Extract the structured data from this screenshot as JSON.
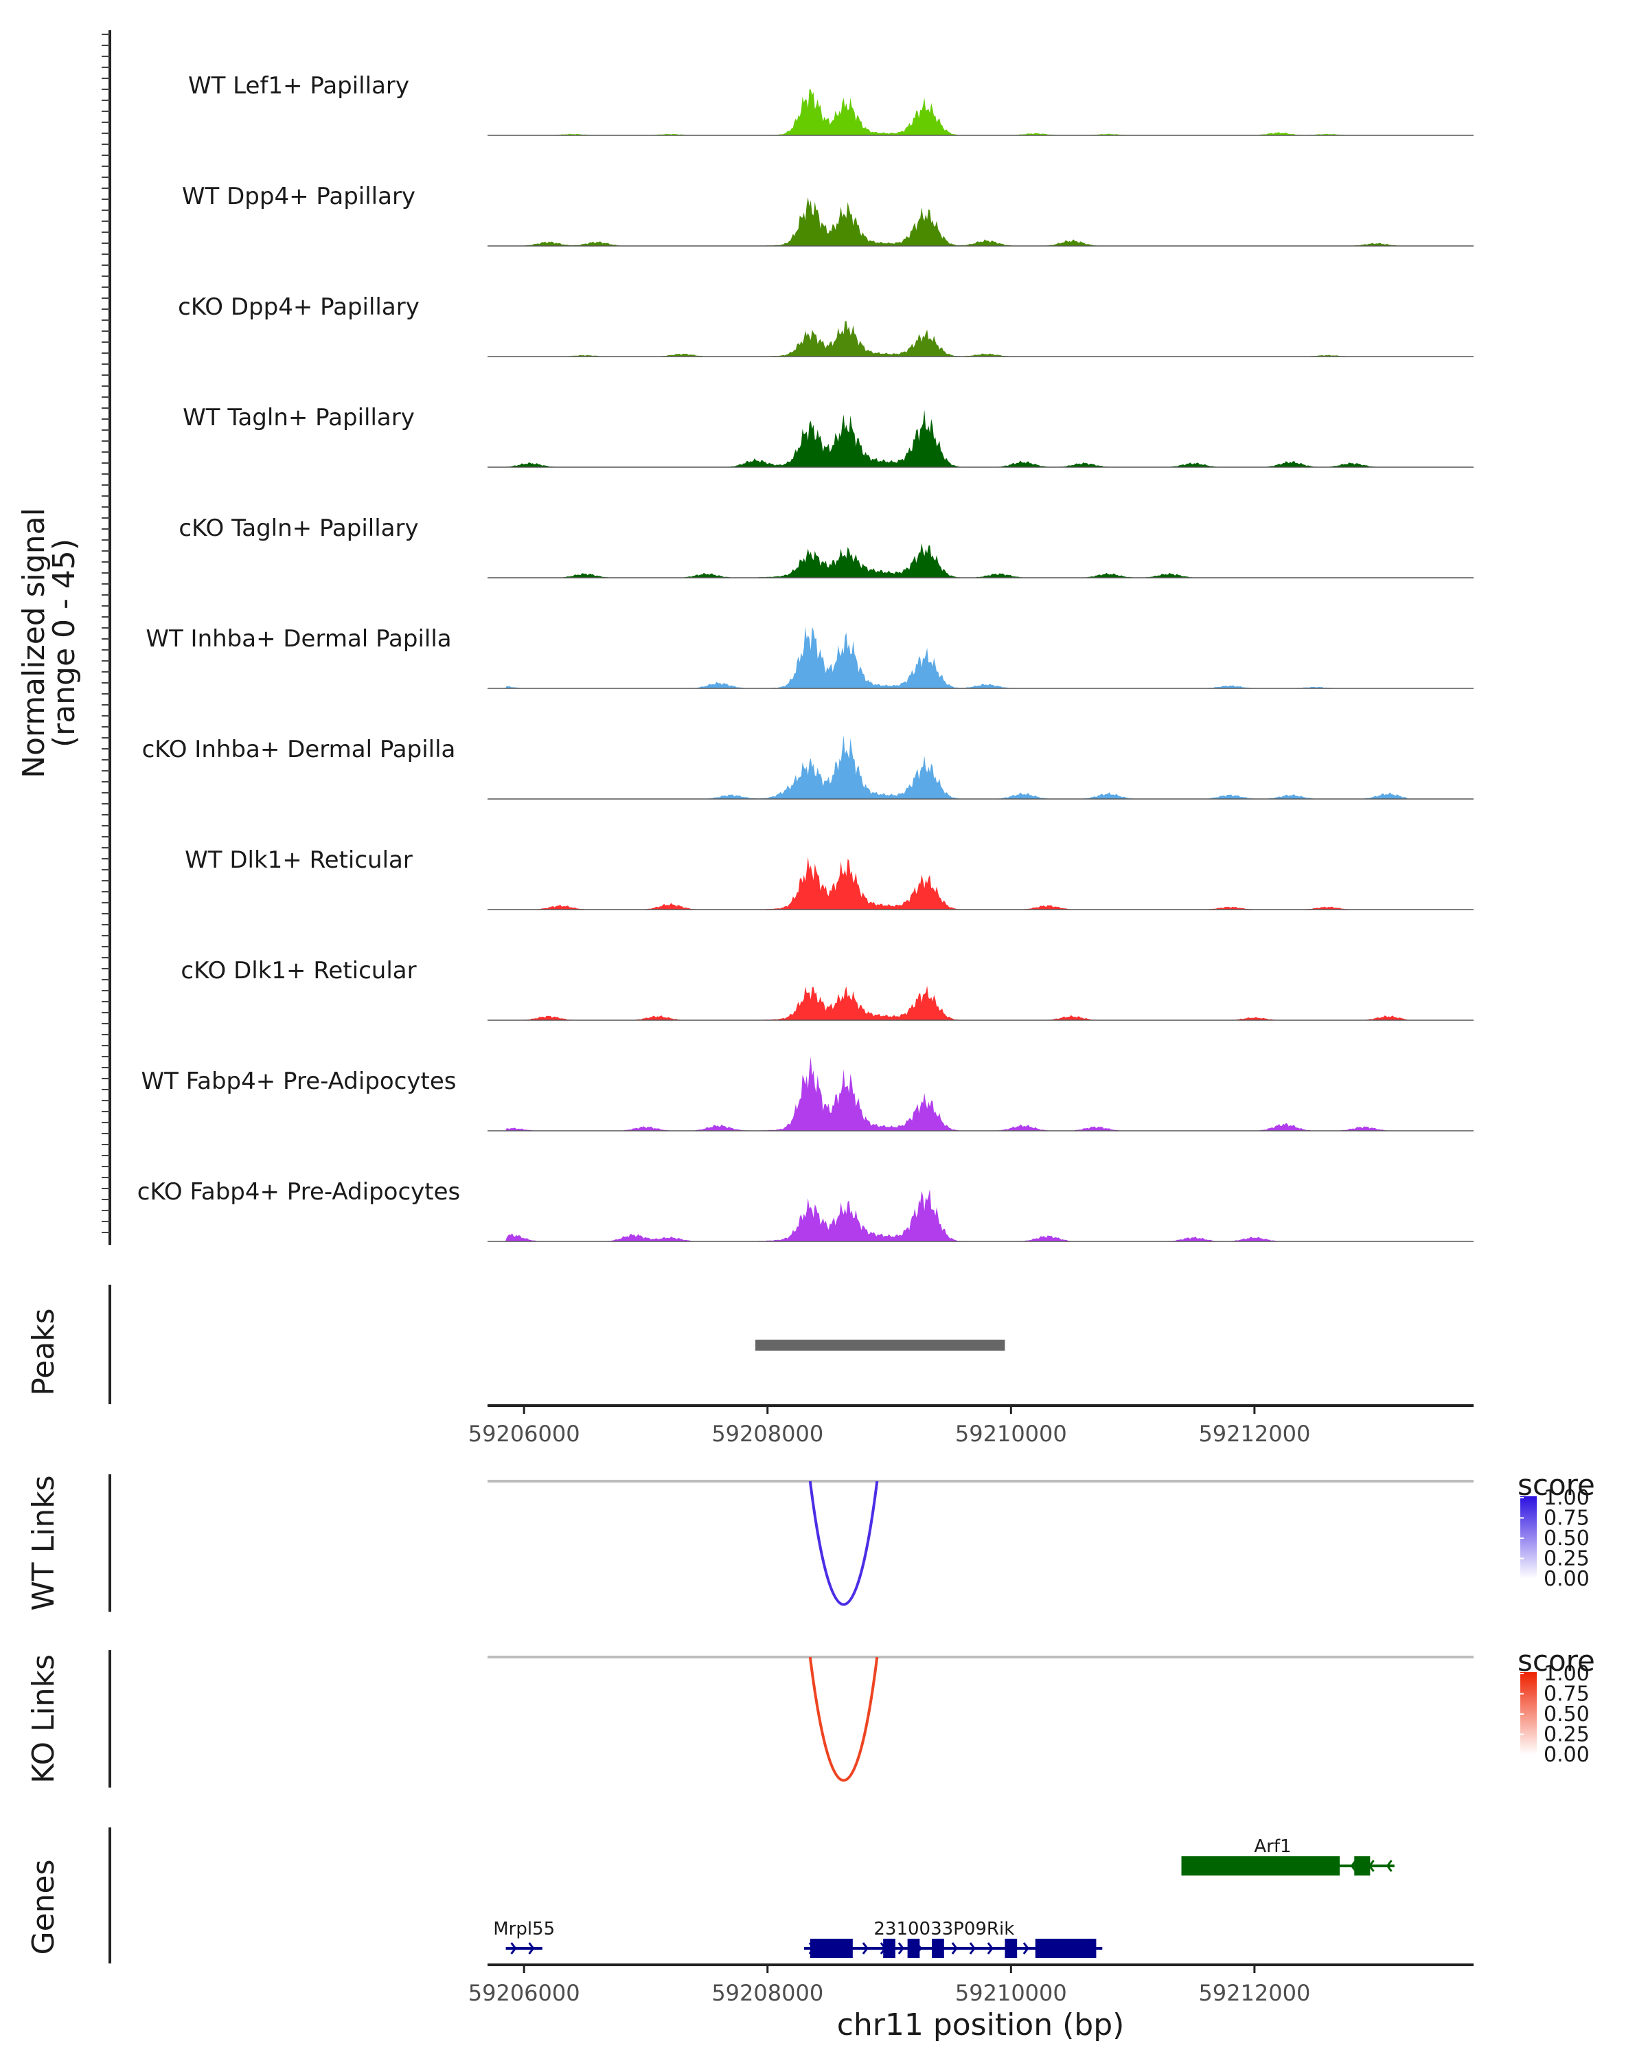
{
  "chart_data": {
    "type": "area",
    "title": "",
    "region": {
      "chromosome": "chr11",
      "start": 59205700,
      "end": 59213800
    },
    "coverage": {
      "ylabel": "Normalized signal",
      "ylabel_range": "(range 0 - 45)",
      "ylim": [
        0,
        45
      ],
      "peak_centers": [
        59208350,
        59208650,
        59209300
      ],
      "tracks": [
        {
          "name": "WT Lef1+ Papillary",
          "color": "#66cc00",
          "heights": [
            30,
            22,
            22
          ],
          "noise": 1.5,
          "extra": [
            [
              59206400,
              1
            ],
            [
              59207200,
              1
            ],
            [
              59210200,
              1.5
            ],
            [
              59210800,
              1
            ],
            [
              59212200,
              2
            ],
            [
              59212600,
              1
            ]
          ]
        },
        {
          "name": "WT Dpp4+ Papillary",
          "color": "#4a8a00",
          "heights": [
            30,
            24,
            24
          ],
          "noise": 2,
          "extra": [
            [
              59206200,
              3
            ],
            [
              59206600,
              3
            ],
            [
              59209800,
              4
            ],
            [
              59210500,
              4
            ],
            [
              59213000,
              2
            ]
          ]
        },
        {
          "name": "cKO Dpp4+ Papillary",
          "color": "#4f8a0b",
          "heights": [
            16,
            20,
            16
          ],
          "noise": 2,
          "extra": [
            [
              59206500,
              1
            ],
            [
              59207300,
              2
            ],
            [
              59209800,
              2
            ],
            [
              59212600,
              1
            ]
          ]
        },
        {
          "name": "WT Tagln+ Papillary",
          "color": "#006100",
          "heights": [
            27,
            27,
            33
          ],
          "noise": 4,
          "extra": [
            [
              59206050,
              3
            ],
            [
              59207900,
              5
            ],
            [
              59210100,
              4
            ],
            [
              59210600,
              3
            ],
            [
              59211500,
              3
            ],
            [
              59212300,
              4
            ],
            [
              59212800,
              3
            ]
          ]
        },
        {
          "name": "cKO Tagln+ Papillary",
          "color": "#006100",
          "heights": [
            15,
            13,
            21
          ],
          "noise": 4,
          "extra": [
            [
              59206500,
              3
            ],
            [
              59207500,
              3
            ],
            [
              59209900,
              3
            ],
            [
              59210800,
              3
            ],
            [
              59211300,
              3
            ]
          ]
        },
        {
          "name": "WT Inhba+ Dermal Papilla",
          "color": "#5ba9e6",
          "heights": [
            40,
            32,
            24
          ],
          "noise": 2,
          "extra": [
            [
              59205800,
              2
            ],
            [
              59207600,
              4
            ],
            [
              59209800,
              3
            ],
            [
              59211800,
              2
            ],
            [
              59212500,
              1
            ]
          ]
        },
        {
          "name": "cKO Inhba+ Dermal Papilla",
          "color": "#5ba9e6",
          "heights": [
            22,
            35,
            25
          ],
          "noise": 3,
          "extra": [
            [
              59207700,
              3
            ],
            [
              59208200,
              6
            ],
            [
              59210100,
              4
            ],
            [
              59210800,
              4
            ],
            [
              59211800,
              3
            ],
            [
              59212300,
              3
            ],
            [
              59213100,
              4
            ]
          ]
        },
        {
          "name": "WT Dlk1+ Reticular",
          "color": "#ff3030",
          "heights": [
            30,
            28,
            22
          ],
          "noise": 3,
          "extra": [
            [
              59206300,
              3
            ],
            [
              59207200,
              4
            ],
            [
              59210300,
              3
            ],
            [
              59211800,
              2
            ],
            [
              59212600,
              2
            ]
          ]
        },
        {
          "name": "cKO Dlk1+ Reticular",
          "color": "#ff3030",
          "heights": [
            20,
            16,
            20
          ],
          "noise": 3,
          "extra": [
            [
              59206200,
              3
            ],
            [
              59207100,
              3
            ],
            [
              59210500,
              3
            ],
            [
              59212000,
              2
            ],
            [
              59213100,
              3
            ]
          ]
        },
        {
          "name": "WT Fabp4+ Pre-Adipocytes",
          "color": "#b13ded",
          "heights": [
            43,
            33,
            22
          ],
          "noise": 3,
          "extra": [
            [
              59205900,
              2
            ],
            [
              59207000,
              3
            ],
            [
              59207600,
              4
            ],
            [
              59210100,
              4
            ],
            [
              59210700,
              3
            ],
            [
              59212250,
              5
            ],
            [
              59212900,
              3
            ]
          ]
        },
        {
          "name": "cKO Fabp4+ Pre-Adipocytes",
          "color": "#b13ded",
          "heights": [
            23,
            20,
            33
          ],
          "noise": 4,
          "extra": [
            [
              59205900,
              5
            ],
            [
              59206900,
              5
            ],
            [
              59207200,
              3
            ],
            [
              59210300,
              4
            ],
            [
              59211500,
              3
            ],
            [
              59212000,
              3
            ]
          ]
        }
      ]
    },
    "peaks": {
      "label": "Peaks",
      "color": "#666666",
      "intervals": [
        [
          59207900,
          59209950
        ]
      ]
    },
    "x_axis": {
      "ticks": [
        59206000,
        59208000,
        59210000,
        59212000
      ],
      "tick_labels": [
        "59206000",
        "59208000",
        "59210000",
        "59212000"
      ],
      "xlabel": "chr11 position (bp)"
    },
    "links": [
      {
        "label": "WT Links",
        "from": 59208350,
        "to": 59208900,
        "score": 0.85,
        "color": "#4b2ee6",
        "legend": {
          "title": "score",
          "ticks": [
            "1.00",
            "0.75",
            "0.50",
            "0.25",
            "0.00"
          ],
          "low": "#ffffff",
          "high": "#2b10e0"
        }
      },
      {
        "label": "KO Links",
        "from": 59208350,
        "to": 59208900,
        "score": 0.85,
        "color": "#ee4422",
        "legend": {
          "title": "score",
          "ticks": [
            "1.00",
            "0.75",
            "0.50",
            "0.25",
            "0.00"
          ],
          "low": "#ffffff",
          "high": "#ee2200"
        }
      }
    ],
    "genes": {
      "label": "Genes",
      "items": [
        {
          "name": "Arf1",
          "strand": "-",
          "color": "#006400",
          "row": 1,
          "start": 59211400,
          "end": 59213150,
          "exons": [
            [
              59211400,
              59212700
            ],
            [
              59212820,
              59212950
            ]
          ]
        },
        {
          "name": "Mrpl55",
          "strand": "+",
          "color": "#00008b",
          "row": 2,
          "start": 59205850,
          "end": 59206150,
          "exons": []
        },
        {
          "name": "2310033P09Rik",
          "strand": "+",
          "color": "#00008b",
          "row": 2,
          "start": 59208300,
          "end": 59210750,
          "exons": [
            [
              59208350,
              59208700
            ],
            [
              59208950,
              59209050
            ],
            [
              59209150,
              59209250
            ],
            [
              59209350,
              59209450
            ],
            [
              59209950,
              59210050
            ],
            [
              59210200,
              59210700
            ]
          ]
        }
      ]
    }
  }
}
